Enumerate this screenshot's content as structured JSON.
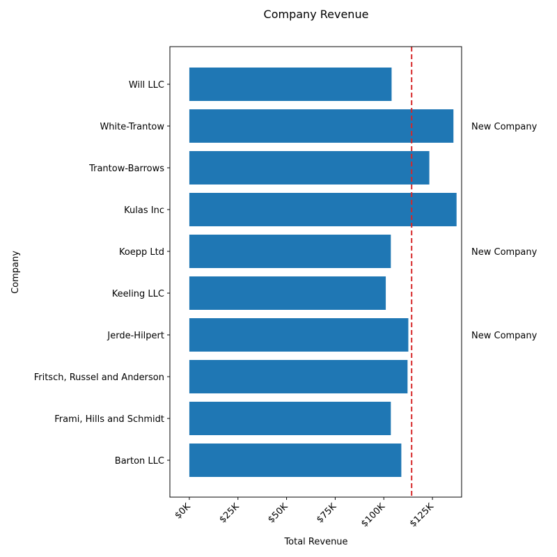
{
  "chart_data": {
    "type": "bar",
    "orientation": "horizontal",
    "title": "Company Revenue",
    "xlabel": "Total Revenue",
    "ylabel": "Company",
    "categories": [
      "Barton LLC",
      "Frami, Hills and Schmidt",
      "Fritsch, Russel and Anderson",
      "Jerde-Hilpert",
      "Keeling LLC",
      "Koepp Ltd",
      "Kulas Inc",
      "Trantow-Barrows",
      "White-Trantow",
      "Will LLC"
    ],
    "values": [
      109000,
      103600,
      112200,
      112600,
      101000,
      103600,
      137400,
      123400,
      135800,
      104000
    ],
    "xlim": [
      -10000,
      140000
    ],
    "xticks": [
      0,
      25000,
      50000,
      75000,
      100000,
      125000
    ],
    "xtick_labels": [
      "$0K",
      "$25K",
      "$50K",
      "$75K",
      "$100K",
      "$125K"
    ],
    "reference_line": {
      "value": 114300,
      "style": "dashed"
    },
    "annotations": [
      {
        "category": "White-Trantow",
        "text": "New Company"
      },
      {
        "category": "Koepp Ltd",
        "text": "New Company"
      },
      {
        "category": "Jerde-Hilpert",
        "text": "New Company"
      }
    ],
    "grid": false,
    "legend": false,
    "colors": {
      "bar": "#1f77b4",
      "reference_line": "#d62728",
      "axis": "#000000"
    }
  }
}
